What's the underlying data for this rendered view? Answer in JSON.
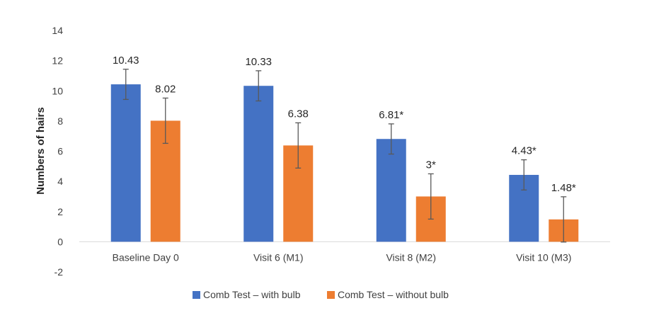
{
  "chart_data": {
    "type": "bar",
    "ylabel": "Numbers of hairs",
    "ylim": [
      -2,
      14
    ],
    "yticks": [
      -2,
      0,
      2,
      4,
      6,
      8,
      10,
      12,
      14
    ],
    "categories": [
      "Baseline Day 0",
      "Visit 6 (M1)",
      "Visit 8 (M2)",
      "Visit 10 (M3)"
    ],
    "series": [
      {
        "name": "Comb Test – with bulb",
        "color": "#4472C4",
        "values": [
          10.43,
          10.33,
          6.81,
          4.43
        ],
        "data_labels": [
          "10.43",
          "10.33",
          "6.81*",
          "4.43*"
        ],
        "error": [
          1.0,
          1.0,
          1.0,
          1.0
        ]
      },
      {
        "name": "Comb Test – without bulb",
        "color": "#ED7D31",
        "values": [
          8.02,
          6.38,
          3,
          1.48
        ],
        "data_labels": [
          "8.02",
          "6.38",
          "3*",
          "1.48*"
        ],
        "error": [
          1.5,
          1.5,
          1.5,
          1.5
        ]
      }
    ],
    "grid": false,
    "legend": "bottom"
  }
}
